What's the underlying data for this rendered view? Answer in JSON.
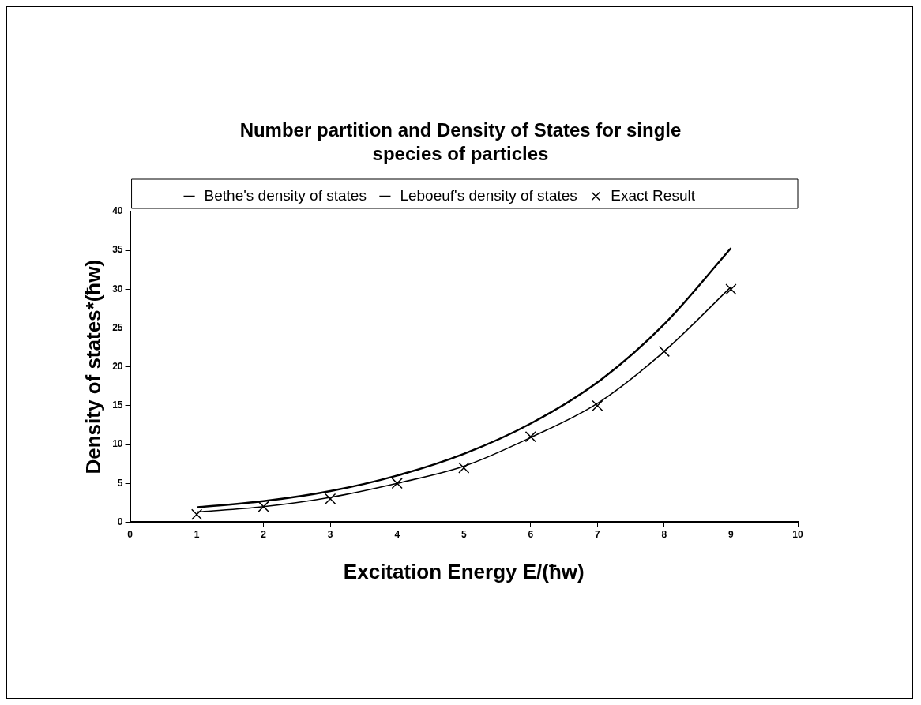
{
  "chart_data": {
    "type": "line",
    "title": "Number partition and Density of States for single species of particles",
    "xlabel": "Excitation Energy E/(ħw)",
    "ylabel": "Density of states*(ħw)",
    "x": [
      1,
      2,
      3,
      4,
      5,
      6,
      7,
      8,
      9
    ],
    "series": [
      {
        "name": "Bethe's density of states",
        "color": "#000000",
        "marker": "none",
        "values": [
          1.9,
          2.7,
          4.0,
          6.0,
          8.8,
          12.7,
          18.0,
          25.5,
          35.3
        ]
      },
      {
        "name": "Leboeuf's density of states",
        "color": "#000000",
        "marker": "none",
        "values": [
          1.3,
          2.0,
          3.2,
          5.0,
          7.2,
          10.9,
          15.3,
          22.0,
          30.3
        ]
      },
      {
        "name": "Exact Result",
        "type": "scatter",
        "color": "#000000",
        "marker": "cross",
        "values": [
          1,
          2,
          3,
          5,
          7,
          11,
          15,
          22,
          30
        ]
      }
    ],
    "xlim": [
      0,
      10
    ],
    "xticks": [
      0,
      1,
      2,
      3,
      4,
      5,
      6,
      7,
      8,
      9,
      10
    ],
    "ylim": [
      0,
      40
    ],
    "yticks": [
      0,
      5,
      10,
      15,
      20,
      25,
      30,
      35,
      40
    ],
    "grid": false,
    "legend": "top"
  }
}
